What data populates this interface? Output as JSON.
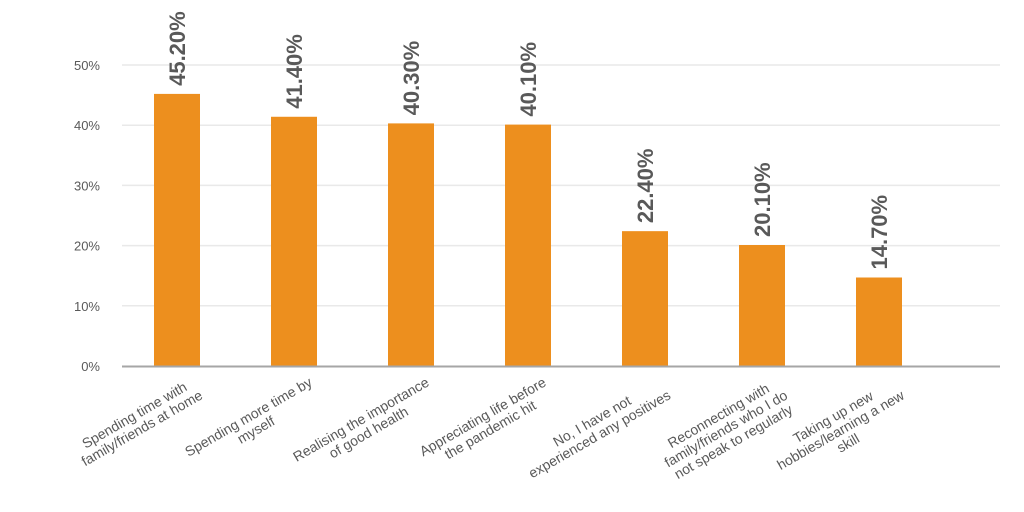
{
  "colors": {
    "bar": "#ED8F1E",
    "grid": "#E9E9E9",
    "axis": "#A6A6A6",
    "text": "#595959"
  },
  "chart_data": {
    "type": "bar",
    "categories": [
      [
        "Spending time with",
        "family/friends at home"
      ],
      [
        "Spending more time by",
        "myself"
      ],
      [
        "Realising the importance",
        "of good health"
      ],
      [
        "Appreciating life before",
        "the pandemic hit"
      ],
      [
        "No, I have not",
        "experienced any positives"
      ],
      [
        "Reconnecting with",
        "family/friends who I do",
        "not speak to regularly"
      ],
      [
        "Taking up new",
        "hobbies/learning a new",
        "skill"
      ]
    ],
    "values": [
      45.2,
      41.4,
      40.3,
      40.1,
      22.4,
      20.1,
      14.7
    ],
    "data_labels": [
      "45.20%",
      "41.40%",
      "40.30%",
      "40.10%",
      "22.40%",
      "20.10%",
      "14.70%"
    ],
    "y_ticks": [
      0,
      10,
      20,
      30,
      40,
      50
    ],
    "y_tick_labels": [
      "0%",
      "10%",
      "20%",
      "30%",
      "40%",
      "50%"
    ],
    "ylim": [
      0,
      50
    ],
    "grid": true,
    "legend": "none"
  }
}
